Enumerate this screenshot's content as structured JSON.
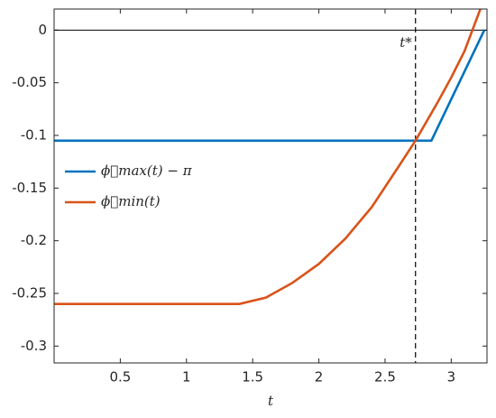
{
  "chart_data": {
    "type": "line",
    "xlabel": "t",
    "xlim": [
      0,
      3.27
    ],
    "ylim": [
      -0.316,
      0.02
    ],
    "xticks": [
      0.5,
      1,
      1.5,
      2,
      2.5,
      3
    ],
    "yticks": [
      0,
      -0.05,
      -0.1,
      -0.15,
      -0.2,
      -0.25,
      -0.3
    ],
    "reference_line": {
      "y": 0,
      "color": "#000000"
    },
    "annotation": {
      "label": "t*",
      "x": 2.73
    },
    "legend": "upper left",
    "series": [
      {
        "name": "ϕ⃖max(t) − π",
        "color": "#0072bd",
        "x": [
          0,
          2.85,
          3.25
        ],
        "values": [
          -0.105,
          -0.105,
          0
        ]
      },
      {
        "name": "ϕ⃗min(t)",
        "color": "#d95319",
        "x": [
          0,
          1.4,
          1.6,
          1.8,
          2.0,
          2.2,
          2.4,
          2.6,
          2.73,
          2.9,
          3.0,
          3.1,
          3.22
        ],
        "values": [
          -0.26,
          -0.26,
          -0.254,
          -0.24,
          -0.222,
          -0.198,
          -0.168,
          -0.13,
          -0.105,
          -0.068,
          -0.045,
          -0.02,
          0.02
        ]
      }
    ]
  }
}
